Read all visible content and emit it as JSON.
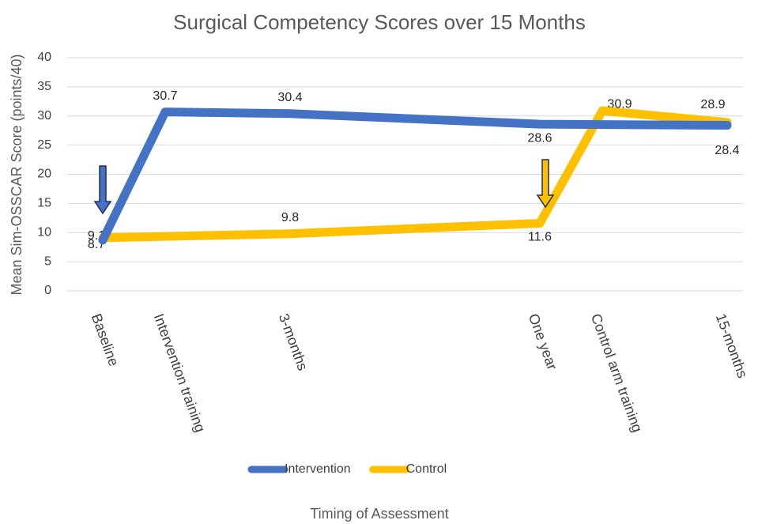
{
  "chart_data": {
    "type": "line",
    "title": "Surgical Competency Scores over 15 Months",
    "x_label": "Timing of Assessment",
    "y_label": "Mean Sim-OSSCAR Score (points/40)",
    "categories": [
      "Baseline",
      "Intervention training",
      null,
      "3-months",
      null,
      null,
      null,
      "One year",
      "Control arm training",
      null,
      "15-months"
    ],
    "series": [
      {
        "name": "Intervention",
        "color": "#4472c4",
        "values": [
          8.7,
          30.7,
          null,
          30.4,
          null,
          null,
          null,
          28.6,
          null,
          null,
          28.4
        ]
      },
      {
        "name": "Control",
        "color": "#ffc000",
        "values": [
          9.1,
          null,
          null,
          9.8,
          null,
          null,
          null,
          11.6,
          30.9,
          null,
          28.9
        ]
      }
    ],
    "span_gaps": true,
    "ylim": [
      0,
      40
    ],
    "yticks": [
      0,
      5,
      10,
      15,
      20,
      25,
      30,
      35,
      40
    ],
    "grid": true,
    "legend": "bottom"
  }
}
